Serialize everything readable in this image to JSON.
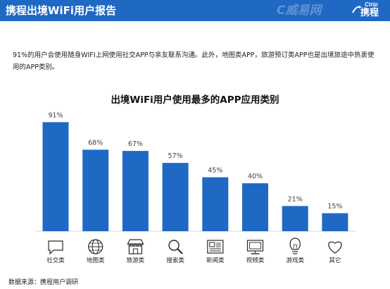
{
  "header": {
    "title": "携程出境WiFi用户报告",
    "watermark": "C威易网",
    "logo_en": "Ctrip",
    "logo_cn": "携程",
    "colors": {
      "header_bg": "#1f69c4"
    }
  },
  "description": "91%的用户会使用随身WIFI上网使用社交APP与亲友联系沟通。此外，地图类APP，旅游预订类APP也是出境旅途中热衷使用的APP类别。",
  "chart_data": {
    "type": "bar",
    "title": "出境WiFi用户使用最多的APP应用类别",
    "categories": [
      "社交类",
      "地图类",
      "旅游类",
      "搜索类",
      "新闻类",
      "视频类",
      "游戏类",
      "其它"
    ],
    "values": [
      91,
      68,
      67,
      57,
      45,
      40,
      21,
      15
    ],
    "value_labels": [
      "91%",
      "68%",
      "67%",
      "57%",
      "45%",
      "40%",
      "21%",
      "15%"
    ],
    "icons": [
      "chat-bubble-icon",
      "globe-icon",
      "store-awning-icon",
      "magnifier-icon",
      "newspaper-icon",
      "monitor-icon",
      "lightbulb-icon",
      "heart-icon"
    ],
    "bar_color": "#1f69c4",
    "ylim": [
      0,
      100
    ],
    "grid": false,
    "legend": "none"
  },
  "footer": {
    "source": "数据来源：携程用户调研"
  }
}
